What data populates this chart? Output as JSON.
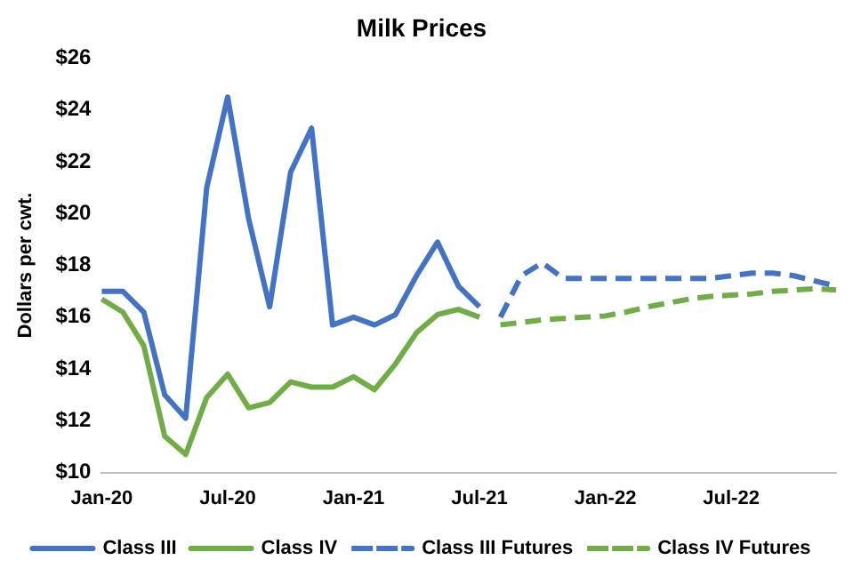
{
  "chart_data": {
    "type": "line",
    "title": "Milk Prices",
    "ylabel": "Dollars per cwt.",
    "categories": [
      "Jan-20",
      null,
      null,
      null,
      null,
      null,
      "Jul-20",
      null,
      null,
      null,
      null,
      null,
      "Jan-21",
      null,
      null,
      null,
      null,
      null,
      "Jul-21",
      null,
      null,
      null,
      null,
      null,
      "Jan-22",
      null,
      null,
      null,
      null,
      null,
      "Jul-22",
      null,
      null,
      null,
      null,
      null
    ],
    "series": [
      {
        "name": "Class III",
        "color": "#4472c4",
        "line_style": "solid",
        "values": [
          17.0,
          17.0,
          16.2,
          13.0,
          12.1,
          21.0,
          24.5,
          19.8,
          16.4,
          21.6,
          23.3,
          15.7,
          16.0,
          15.7,
          16.1,
          17.6,
          18.9,
          17.2,
          16.4,
          null,
          null,
          null,
          null,
          null,
          null,
          null,
          null,
          null,
          null,
          null,
          null,
          null,
          null,
          null,
          null,
          null
        ]
      },
      {
        "name": "Class IV",
        "color": "#70ad47",
        "line_style": "solid",
        "values": [
          16.7,
          16.2,
          14.9,
          11.4,
          10.7,
          12.9,
          13.8,
          12.5,
          12.7,
          13.5,
          13.3,
          13.3,
          13.7,
          13.2,
          14.2,
          15.4,
          16.1,
          16.3,
          16.0,
          null,
          null,
          null,
          null,
          null,
          null,
          null,
          null,
          null,
          null,
          null,
          null,
          null,
          null,
          null,
          null,
          null
        ]
      },
      {
        "name": "Class III Futures",
        "color": "#4472c4",
        "line_style": "dashed",
        "values": [
          null,
          null,
          null,
          null,
          null,
          null,
          null,
          null,
          null,
          null,
          null,
          null,
          null,
          null,
          null,
          null,
          null,
          null,
          null,
          16.0,
          17.6,
          18.1,
          17.5,
          17.5,
          17.5,
          17.5,
          17.5,
          17.5,
          17.5,
          17.5,
          17.6,
          17.7,
          17.7,
          17.6,
          17.4,
          17.2
        ]
      },
      {
        "name": "Class IV Futures",
        "color": "#70ad47",
        "line_style": "dashed",
        "values": [
          null,
          null,
          null,
          null,
          null,
          null,
          null,
          null,
          null,
          null,
          null,
          null,
          null,
          null,
          null,
          null,
          null,
          null,
          null,
          15.7,
          15.8,
          15.9,
          15.95,
          16.0,
          16.05,
          16.2,
          16.4,
          16.55,
          16.7,
          16.8,
          16.85,
          16.9,
          17.0,
          17.05,
          17.1,
          17.05
        ]
      }
    ],
    "ylim": [
      10,
      26
    ],
    "yticks": [
      {
        "value": 10,
        "label": "$10"
      },
      {
        "value": 12,
        "label": "$12"
      },
      {
        "value": 14,
        "label": "$14"
      },
      {
        "value": 16,
        "label": "$16"
      },
      {
        "value": 18,
        "label": "$18"
      },
      {
        "value": 20,
        "label": "$20"
      },
      {
        "value": 22,
        "label": "$22"
      },
      {
        "value": 24,
        "label": "$24"
      },
      {
        "value": 26,
        "label": "$26"
      }
    ],
    "grid": false,
    "legend": "bottom",
    "marker": "none"
  }
}
